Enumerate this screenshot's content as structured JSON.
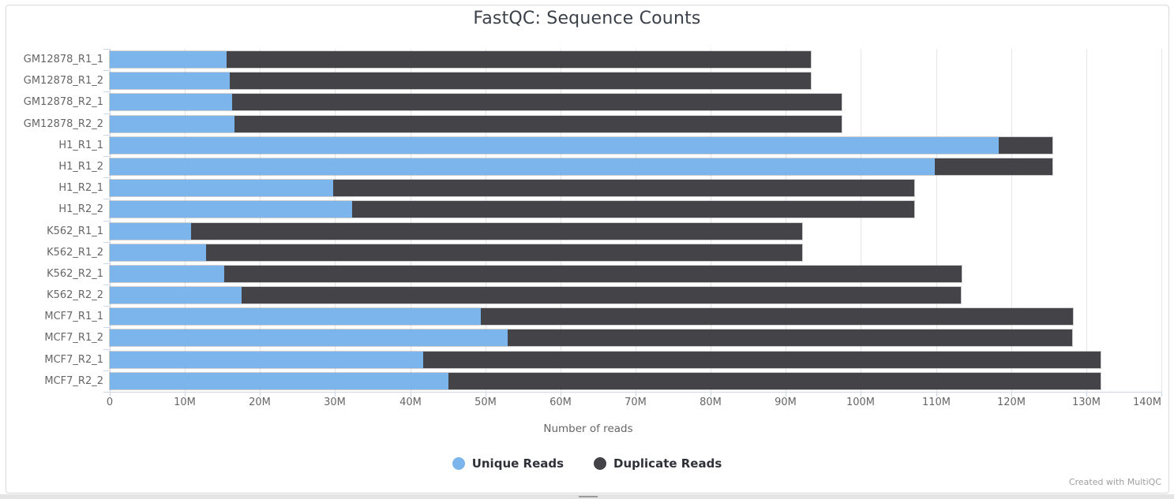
{
  "title": "FastQC: Sequence Counts",
  "watermark": "Created with MultiQC",
  "colors": {
    "unique": "#7cb5ec",
    "duplicate": "#434348",
    "gridline": "#e6e6e6",
    "axis_line": "#ccd6eb",
    "axis_text": "#666666",
    "title_text": "#3b4149",
    "legend_text": "#2e3238",
    "watermark_text": "#9f9f9f"
  },
  "chart_data": {
    "type": "bar",
    "orientation": "horizontal",
    "stacked": true,
    "title": "FastQC: Sequence Counts",
    "xlabel": "Number of reads",
    "ylabel": "",
    "xlim_reads": [
      0,
      140000000
    ],
    "x_tick_labels": [
      "0",
      "10M",
      "20M",
      "30M",
      "40M",
      "50M",
      "60M",
      "70M",
      "80M",
      "90M",
      "100M",
      "110M",
      "120M",
      "130M",
      "140M"
    ],
    "grid": true,
    "legend_position": "bottom",
    "categories": [
      "GM12878_R1_1",
      "GM12878_R1_2",
      "GM12878_R2_1",
      "GM12878_R2_2",
      "H1_R1_1",
      "H1_R1_2",
      "H1_R2_1",
      "H1_R2_2",
      "K562_R1_1",
      "K562_R1_2",
      "K562_R2_1",
      "K562_R2_2",
      "MCF7_R1_1",
      "MCF7_R1_2",
      "MCF7_R2_1",
      "MCF7_R2_2"
    ],
    "series": [
      {
        "name": "Unique Reads",
        "color": "#7cb5ec",
        "values_millions": [
          15.6,
          16.0,
          16.3,
          16.6,
          118.4,
          109.8,
          29.7,
          32.3,
          10.8,
          12.8,
          15.2,
          17.6,
          49.4,
          53.0,
          41.7,
          45.1
        ]
      },
      {
        "name": "Duplicate Reads",
        "color": "#434348",
        "values_millions": [
          77.8,
          77.4,
          81.1,
          80.8,
          7.1,
          15.7,
          77.4,
          74.8,
          81.4,
          79.4,
          98.2,
          95.8,
          78.8,
          75.2,
          90.2,
          86.8
        ]
      }
    ],
    "totals_millions": [
      93.4,
      93.4,
      97.4,
      97.4,
      125.5,
      125.5,
      107.1,
      107.1,
      92.2,
      92.2,
      113.4,
      113.4,
      128.2,
      128.2,
      131.9,
      131.9
    ]
  },
  "legend": {
    "items": [
      {
        "label": "Unique Reads",
        "color": "#7cb5ec"
      },
      {
        "label": "Duplicate Reads",
        "color": "#434348"
      }
    ]
  }
}
